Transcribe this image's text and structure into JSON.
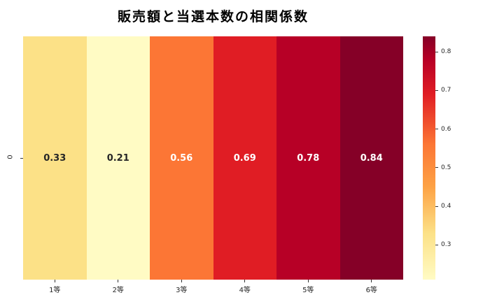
{
  "title": "販売額と当選本数の相関係数",
  "y_axis": {
    "row_label": "0"
  },
  "chart_data": {
    "type": "heatmap",
    "title": "販売額と当選本数の相関係数",
    "row_labels": [
      "0"
    ],
    "categories": [
      "1等",
      "2等",
      "3等",
      "4等",
      "5等",
      "6等"
    ],
    "values": [
      [
        0.33,
        0.21,
        0.56,
        0.69,
        0.78,
        0.84
      ]
    ],
    "value_labels": [
      "0.33",
      "0.21",
      "0.56",
      "0.69",
      "0.78",
      "0.84"
    ],
    "cell_colors": [
      "#fce187",
      "#fffbc4",
      "#fc7635",
      "#e01d24",
      "#b70026",
      "#850027"
    ],
    "text_colors": [
      "#262626",
      "#262626",
      "#ffffff",
      "#ffffff",
      "#ffffff",
      "#ffffff"
    ],
    "colormap": "YlOrRd",
    "legend_position": "right",
    "grid": false,
    "colorbar": {
      "vmin": 0.21,
      "vmax": 0.84,
      "ticks": [
        "0.8",
        "0.7",
        "0.6",
        "0.5",
        "0.4",
        "0.3"
      ],
      "gradient_stops": [
        {
          "value": 0.84,
          "color": "#850027"
        },
        {
          "value": 0.78,
          "color": "#b70026"
        },
        {
          "value": 0.69,
          "color": "#e01d24"
        },
        {
          "value": 0.56,
          "color": "#fc7635"
        },
        {
          "value": 0.45,
          "color": "#fda245"
        },
        {
          "value": 0.33,
          "color": "#fce187"
        },
        {
          "value": 0.21,
          "color": "#fffbc4"
        }
      ]
    }
  }
}
